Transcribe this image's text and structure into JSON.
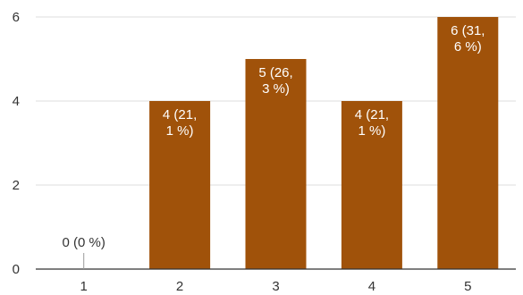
{
  "chart_data": {
    "type": "bar",
    "title": "",
    "xlabel": "",
    "ylabel": "",
    "categories": [
      "1",
      "2",
      "3",
      "4",
      "5"
    ],
    "values": [
      0,
      4,
      5,
      4,
      6
    ],
    "data_labels": [
      [
        "0 (0 %)"
      ],
      [
        "4 (21,",
        "1 %)"
      ],
      [
        "5 (26,",
        "3 %)"
      ],
      [
        "4 (21,",
        "1 %)"
      ],
      [
        "6 (31,",
        "6 %)"
      ]
    ],
    "ylim": [
      0,
      6
    ],
    "yticks": [
      "0",
      "2",
      "4",
      "6"
    ],
    "grid": true,
    "bar_color": "#a0520a",
    "label_color_on_bar": "#ffffff",
    "label_color_off_bar": "#333333",
    "gridline_color": "#dddddd",
    "axis_color": "#333333"
  }
}
